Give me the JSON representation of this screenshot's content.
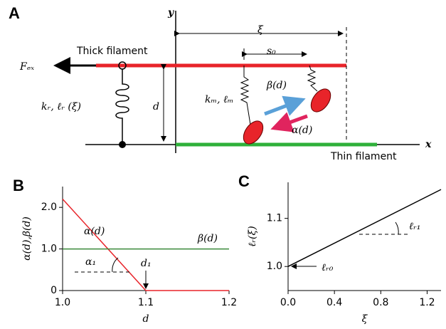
{
  "panel_a": {
    "label": "A",
    "y_axis": "y",
    "x_axis": "x",
    "xi": "ξ",
    "s0": "s₀",
    "force": "Fₑₓ",
    "thick": "Thick filament",
    "thin": "Thin filament",
    "spring_r": "kᵣ, ℓᵣ (ξ)",
    "spacing": "d",
    "spring_m": "kₘ, ℓₘ",
    "beta": "β(d)",
    "alpha": "α(d)"
  },
  "chart_data": [
    {
      "type": "line",
      "panel_label": "B",
      "x_label": "d",
      "y_label": "α(d),β(d)",
      "xlim": [
        1.0,
        1.2
      ],
      "ylim": [
        0,
        2.5
      ],
      "xticks": [
        {
          "value": 1.0,
          "label": "1.0"
        },
        {
          "value": 1.1,
          "label": "1.1"
        },
        {
          "value": 1.2,
          "label": "1.2"
        }
      ],
      "yticks": [
        0,
        {
          "value": 1.0,
          "label": "1.0"
        },
        {
          "value": 2.0,
          "label": "2.0"
        }
      ],
      "series": [
        {
          "name": "α(d)",
          "color": "#e8242a",
          "x": [
            1.0,
            1.1,
            1.2
          ],
          "values": [
            2.2,
            0,
            0
          ]
        },
        {
          "name": "β(d)",
          "color": "#3a8a3a",
          "x": [
            1.0,
            1.2
          ],
          "values": [
            1.0,
            1.0
          ]
        }
      ],
      "annotations": [
        "α₁",
        "d₁"
      ]
    },
    {
      "type": "line",
      "panel_label": "C",
      "x_label": "ξ",
      "y_label": "ℓᵣ(ξ)",
      "xlim": [
        0,
        1.32
      ],
      "ylim": [
        0.95,
        1.175
      ],
      "xticks": [
        {
          "value": 0,
          "label": "0.0"
        },
        0.4,
        0.8,
        1.2
      ],
      "yticks": [
        {
          "value": 1.0,
          "label": "1.0"
        },
        1.1
      ],
      "series": [
        {
          "name": "ℓᵣ₀",
          "color": "#000000",
          "x": [
            0,
            1.32
          ],
          "values": [
            1.0,
            1.16
          ]
        }
      ],
      "annotations": [
        "ℓᵣ₁"
      ]
    }
  ]
}
